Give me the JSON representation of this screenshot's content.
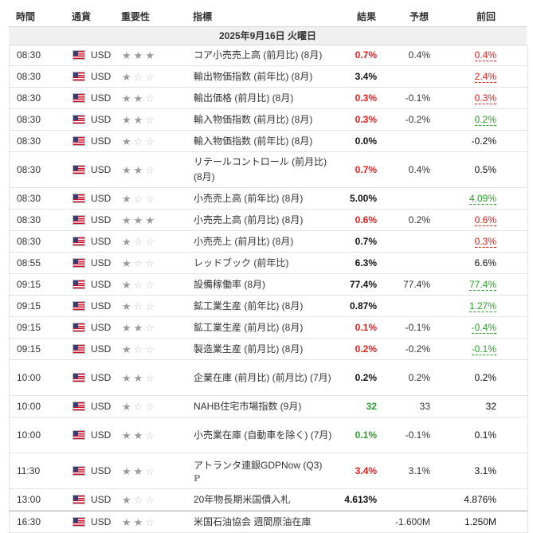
{
  "headers": {
    "time": "時間",
    "currency": "通貨",
    "importance": "重要性",
    "indicator": "指標",
    "actual": "結果",
    "forecast": "予想",
    "previous": "前回"
  },
  "date": "2025年9月16日 火曜日",
  "icons": {
    "flag": "us-flag-icon",
    "star": "star-icon"
  },
  "colors": {
    "red": "#e02020",
    "green": "#2e9e2e",
    "band": "#f0f0f0"
  },
  "rows": [
    {
      "time": "08:30",
      "currency": "USD",
      "stars": 3,
      "indicator": "コア小売売上高 (前月比) (8月)",
      "actual": "0.7%",
      "actual_color": "red",
      "forecast": "0.4%",
      "previous": "0.4%",
      "previous_color": "red",
      "previous_revised": true,
      "height": 26
    },
    {
      "time": "08:30",
      "currency": "USD",
      "stars": 1,
      "indicator": "輸出物価指数 (前年比) (8月)",
      "actual": "3.4%",
      "actual_color": "black",
      "forecast": "",
      "previous": "2.4%",
      "previous_color": "red",
      "previous_revised": true,
      "height": 26
    },
    {
      "time": "08:30",
      "currency": "USD",
      "stars": 2,
      "indicator": "輸出価格 (前月比) (8月)",
      "actual": "0.3%",
      "actual_color": "red",
      "forecast": "-0.1%",
      "previous": "0.3%",
      "previous_color": "red",
      "previous_revised": true,
      "height": 26
    },
    {
      "time": "08:30",
      "currency": "USD",
      "stars": 2,
      "indicator": "輸入物価指数 (前月比) (8月)",
      "actual": "0.3%",
      "actual_color": "red",
      "forecast": "-0.2%",
      "previous": "0.2%",
      "previous_color": "green",
      "previous_revised": true,
      "height": 26
    },
    {
      "time": "08:30",
      "currency": "USD",
      "stars": 1,
      "indicator": "輸入物価指数 (前年比) (8月)",
      "actual": "0.0%",
      "actual_color": "black",
      "forecast": "",
      "previous": "-0.2%",
      "previous_color": "black",
      "previous_revised": false,
      "height": 26
    },
    {
      "time": "08:30",
      "currency": "USD",
      "stars": 2,
      "indicator": "リテールコントロール (前月比) (8月)",
      "actual": "0.7%",
      "actual_color": "red",
      "forecast": "0.4%",
      "previous": "0.5%",
      "previous_color": "black",
      "previous_revised": false,
      "height": 44
    },
    {
      "time": "08:30",
      "currency": "USD",
      "stars": 1,
      "indicator": "小売売上高 (前年比) (8月)",
      "actual": "5.00%",
      "actual_color": "black",
      "forecast": "",
      "previous": "4.09%",
      "previous_color": "green",
      "previous_revised": true,
      "height": 26
    },
    {
      "time": "08:30",
      "currency": "USD",
      "stars": 3,
      "indicator": "小売売上高 (前月比) (8月)",
      "actual": "0.6%",
      "actual_color": "red",
      "forecast": "0.2%",
      "previous": "0.6%",
      "previous_color": "red",
      "previous_revised": true,
      "height": 26
    },
    {
      "time": "08:30",
      "currency": "USD",
      "stars": 1,
      "indicator": "小売売上 (前月比) (8月)",
      "actual": "0.7%",
      "actual_color": "black",
      "forecast": "",
      "previous": "0.3%",
      "previous_color": "red",
      "previous_revised": true,
      "height": 26
    },
    {
      "time": "08:55",
      "currency": "USD",
      "stars": 1,
      "indicator": "レッドブック (前年比)",
      "actual": "6.3%",
      "actual_color": "black",
      "forecast": "",
      "previous": "6.6%",
      "previous_color": "black",
      "previous_revised": false,
      "height": 26
    },
    {
      "time": "09:15",
      "currency": "USD",
      "stars": 1,
      "indicator": "設備稼働率 (8月)",
      "actual": "77.4%",
      "actual_color": "black",
      "forecast": "77.4%",
      "previous": "77.4%",
      "previous_color": "green",
      "previous_revised": true,
      "height": 26
    },
    {
      "time": "09:15",
      "currency": "USD",
      "stars": 1,
      "indicator": "鉱工業生産 (前年比) (8月)",
      "actual": "0.87%",
      "actual_color": "black",
      "forecast": "",
      "previous": "1.27%",
      "previous_color": "green",
      "previous_revised": true,
      "height": 26
    },
    {
      "time": "09:15",
      "currency": "USD",
      "stars": 2,
      "indicator": "鉱工業生産 (前月比) (8月)",
      "actual": "0.1%",
      "actual_color": "red",
      "forecast": "-0.1%",
      "previous": "-0.4%",
      "previous_color": "green",
      "previous_revised": true,
      "height": 26
    },
    {
      "time": "09:15",
      "currency": "USD",
      "stars": 1,
      "indicator": "製造業生産 (前月比) (8月)",
      "actual": "0.2%",
      "actual_color": "red",
      "forecast": "-0.2%",
      "previous": "-0.1%",
      "previous_color": "green",
      "previous_revised": true,
      "height": 26
    },
    {
      "time": "10:00",
      "currency": "USD",
      "stars": 2,
      "indicator": "企業在庫 (前月比) (前月比) (7月)",
      "actual": "0.2%",
      "actual_color": "black",
      "forecast": "0.2%",
      "previous": "0.2%",
      "previous_color": "black",
      "previous_revised": false,
      "height": 44
    },
    {
      "time": "10:00",
      "currency": "USD",
      "stars": 1,
      "indicator": "NAHB住宅市場指数 (9月)",
      "actual": "32",
      "actual_color": "green",
      "forecast": "33",
      "previous": "32",
      "previous_color": "black",
      "previous_revised": false,
      "height": 26
    },
    {
      "time": "10:00",
      "currency": "USD",
      "stars": 2,
      "indicator": "小売業在庫 (自動車を除く) (7月)",
      "actual": "0.1%",
      "actual_color": "green",
      "forecast": "-0.1%",
      "previous": "0.1%",
      "previous_color": "black",
      "previous_revised": false,
      "height": 44
    },
    {
      "time": "11:30",
      "currency": "USD",
      "stars": 2,
      "indicator": "アトランタ連銀GDPNow (Q3)",
      "extra": "P",
      "actual": "3.4%",
      "actual_color": "red",
      "forecast": "3.1%",
      "previous": "3.1%",
      "previous_color": "black",
      "previous_revised": false,
      "height": 44
    },
    {
      "time": "13:00",
      "currency": "USD",
      "stars": 1,
      "indicator": "20年物長期米国債入札",
      "actual": "4.613%",
      "actual_color": "black",
      "forecast": "",
      "previous": "4.876%",
      "previous_color": "black",
      "previous_revised": false,
      "height": 26
    },
    {
      "time": "16:30",
      "currency": "USD",
      "stars": 2,
      "indicator": "米国石油協会 週間原油在庫",
      "actual": "",
      "actual_color": "black",
      "forecast": "-1.600M",
      "previous": "1.250M",
      "previous_color": "black",
      "previous_revised": false,
      "height": 26
    }
  ]
}
